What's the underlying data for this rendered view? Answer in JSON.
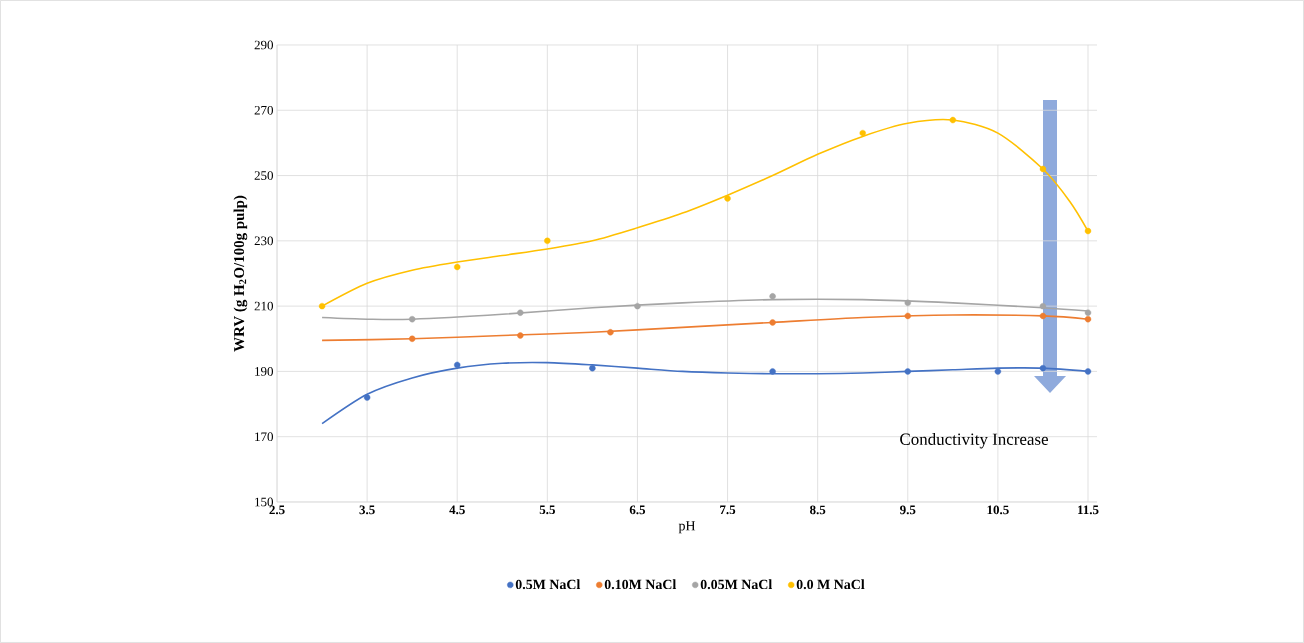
{
  "chart_data": {
    "type": "scatter",
    "xlabel": "pH",
    "ylabel": "WRV (g H$_{2}$O/100g pulp)",
    "xlim": [
      2.5,
      11.6
    ],
    "xticks": [
      2.5,
      3.5,
      4.5,
      5.5,
      6.5,
      7.5,
      8.5,
      9.5,
      10.5,
      11.5
    ],
    "ylim": [
      150,
      290
    ],
    "yticks": [
      150,
      170,
      190,
      210,
      230,
      250,
      270,
      290
    ],
    "grid": true,
    "legend": "bottom",
    "annotations": [
      "Conductivity Increase"
    ],
    "series": [
      {
        "name": "0.5M NaCl",
        "color": "#4472c4",
        "marker": "circle",
        "x": [
          3.5,
          4.5,
          6.0,
          8.0,
          9.5,
          10.5,
          11.0,
          11.5
        ],
        "values": [
          182,
          192,
          191,
          190,
          190,
          190,
          191,
          190
        ]
      },
      {
        "name": "0.10M NaCl",
        "color": "#ed7d31",
        "marker": "circle",
        "x": [
          4.0,
          5.2,
          6.2,
          8.0,
          9.5,
          11.0,
          11.5
        ],
        "values": [
          200,
          201,
          202,
          205,
          207,
          207,
          206
        ]
      },
      {
        "name": "0.05M NaCl",
        "color": "#a5a5a5",
        "marker": "circle",
        "x": [
          4.0,
          5.2,
          6.5,
          8.0,
          9.5,
          11.0,
          11.5
        ],
        "values": [
          206,
          208,
          210,
          213,
          211,
          210,
          208
        ]
      },
      {
        "name": "0.0 M NaCl",
        "color": "#ffc000",
        "marker": "circle",
        "x": [
          3.0,
          4.5,
          5.5,
          7.5,
          9.0,
          10.0,
          11.0,
          11.5
        ],
        "values": [
          210,
          222,
          230,
          243,
          263,
          267,
          252,
          233
        ]
      },
      {
        "color": "#4472c4",
        "type": "line",
        "marker": "none",
        "x": [
          3.0,
          3.5,
          4.0,
          4.5,
          5.0,
          5.5,
          6.0,
          6.5,
          7.0,
          7.5,
          8.0,
          8.5,
          9.0,
          9.5,
          10.0,
          10.5,
          11.0,
          11.5
        ],
        "values": [
          174,
          183,
          188,
          191,
          192.5,
          192.7,
          192,
          191,
          190,
          189.5,
          189.3,
          189.3,
          189.5,
          190,
          190.5,
          191,
          191,
          190
        ]
      },
      {
        "color": "#ed7d31",
        "type": "line",
        "marker": "none",
        "x": [
          3.0,
          4.0,
          5.0,
          6.0,
          7.0,
          8.0,
          9.0,
          10.0,
          11.0,
          11.5
        ],
        "values": [
          199.5,
          200,
          201,
          202,
          203.5,
          205,
          206.5,
          207.3,
          207,
          206
        ]
      },
      {
        "color": "#a5a5a5",
        "type": "line",
        "marker": "none",
        "x": [
          3.0,
          3.5,
          4.0,
          5.0,
          6.0,
          7.0,
          8.0,
          9.0,
          10.0,
          11.0,
          11.5
        ],
        "values": [
          206.5,
          206,
          206,
          207.5,
          209.5,
          211,
          212,
          212,
          211,
          209.5,
          208.5
        ]
      },
      {
        "color": "#ffc000",
        "type": "line",
        "marker": "none",
        "x": [
          3.0,
          3.5,
          4.0,
          4.5,
          5.0,
          5.5,
          6.0,
          6.5,
          7.0,
          7.5,
          8.0,
          8.5,
          9.0,
          9.5,
          10.0,
          10.5,
          11.0,
          11.3,
          11.5
        ],
        "values": [
          210,
          217,
          221,
          223.5,
          225.5,
          227.5,
          230,
          234,
          238.5,
          244,
          250,
          256.5,
          262,
          266,
          267,
          263,
          252,
          242,
          233
        ]
      }
    ]
  }
}
